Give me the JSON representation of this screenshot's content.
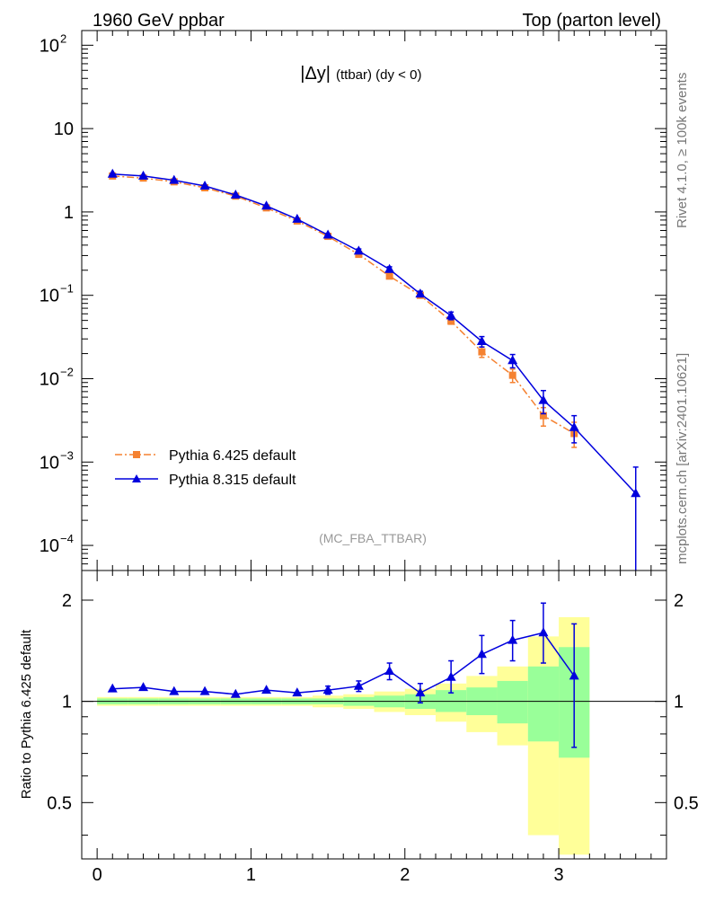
{
  "header": {
    "left_title": "1960 GeV ppbar",
    "right_title": "Top (parton level)"
  },
  "side": {
    "rivet": "Rivet 4.1.0, ≥ 100k events",
    "mcplots": "mcplots.cern.ch [arXiv:2401.10621]"
  },
  "chart_data": [
    {
      "type": "line",
      "title": "|Δy| (ttbar) (dy < 0)",
      "title_main": "|Δy|",
      "title_sub": "(ttbar) (dy < 0)",
      "watermark": "(MC_FBA_TTBAR)",
      "xlabel": "",
      "ylabel": "",
      "yscale": "log",
      "xlim": [
        -0.1,
        3.7
      ],
      "ylim": [
        5e-05,
        150
      ],
      "yticks": [
        {
          "value": 100,
          "base": "10",
          "exp": "2"
        },
        {
          "value": 10,
          "base": "10",
          "exp": ""
        },
        {
          "value": 1,
          "base": "1",
          "exp": ""
        },
        {
          "value": 0.1,
          "base": "10",
          "exp": "−1"
        },
        {
          "value": 0.01,
          "base": "10",
          "exp": "−2"
        },
        {
          "value": 0.001,
          "base": "10",
          "exp": "−3"
        },
        {
          "value": 0.0001,
          "base": "10",
          "exp": "−4"
        }
      ],
      "legend": [
        "Pythia 6.425 default",
        "Pythia 8.315 default"
      ],
      "legend_position": "bottom-left",
      "series": [
        {
          "name": "Pythia 6.425 default",
          "color": "#f58231",
          "marker": "square",
          "line": "dashdot",
          "x": [
            0.1,
            0.3,
            0.5,
            0.7,
            0.9,
            1.1,
            1.3,
            1.5,
            1.7,
            1.9,
            2.1,
            2.3,
            2.5,
            2.7,
            2.9,
            3.1
          ],
          "y": [
            2.7,
            2.55,
            2.3,
            1.95,
            1.55,
            1.12,
            0.78,
            0.51,
            0.31,
            0.17,
            0.1,
            0.049,
            0.021,
            0.011,
            0.0036,
            0.0022
          ],
          "err_up": [
            0,
            0,
            0,
            0,
            0,
            0,
            0,
            0,
            0,
            0.01,
            0.005,
            0.004,
            0.003,
            0.002,
            0.0009,
            0.0008
          ],
          "err_down": [
            0,
            0,
            0,
            0,
            0,
            0,
            0,
            0,
            0,
            0.01,
            0.005,
            0.004,
            0.003,
            0.002,
            0.0009,
            0.0007
          ]
        },
        {
          "name": "Pythia 8.315 default",
          "color": "#0000dd",
          "marker": "triangle",
          "line": "solid",
          "x": [
            0.1,
            0.3,
            0.5,
            0.7,
            0.9,
            1.1,
            1.3,
            1.5,
            1.7,
            1.9,
            2.1,
            2.3,
            2.5,
            2.7,
            2.9,
            3.1,
            3.5
          ],
          "y": [
            2.85,
            2.7,
            2.4,
            2.05,
            1.6,
            1.18,
            0.82,
            0.53,
            0.34,
            0.205,
            0.104,
            0.057,
            0.028,
            0.0165,
            0.0055,
            0.0026,
            0.00042
          ],
          "err_up": [
            0,
            0,
            0,
            0,
            0,
            0,
            0,
            0,
            0.02,
            0.015,
            0.008,
            0.006,
            0.004,
            0.003,
            0.0017,
            0.001,
            0.00045
          ],
          "err_down": [
            0,
            0,
            0,
            0,
            0,
            0,
            0,
            0,
            0.02,
            0.015,
            0.008,
            0.006,
            0.004,
            0.003,
            0.0017,
            0.0009,
            0.00038
          ]
        }
      ]
    },
    {
      "type": "line",
      "xlabel": "",
      "ylabel": "Ratio to Pythia 6.425 default",
      "yscale": "log",
      "xlim": [
        -0.1,
        3.7
      ],
      "ylim": [
        0.34,
        2.45
      ],
      "yticks": [
        2,
        1,
        0.5
      ],
      "xticks": [
        0,
        1,
        2,
        3
      ],
      "reference_line": 1,
      "bands": [
        {
          "x0": 0.0,
          "x1": 0.2,
          "g_lo": 0.98,
          "g_hi": 1.02,
          "y_lo": 0.97,
          "y_hi": 1.03
        },
        {
          "x0": 0.2,
          "x1": 0.4,
          "g_lo": 0.98,
          "g_hi": 1.02,
          "y_lo": 0.97,
          "y_hi": 1.03
        },
        {
          "x0": 0.4,
          "x1": 0.6,
          "g_lo": 0.98,
          "g_hi": 1.02,
          "y_lo": 0.97,
          "y_hi": 1.03
        },
        {
          "x0": 0.6,
          "x1": 0.8,
          "g_lo": 0.98,
          "g_hi": 1.02,
          "y_lo": 0.97,
          "y_hi": 1.03
        },
        {
          "x0": 0.8,
          "x1": 1.0,
          "g_lo": 0.98,
          "g_hi": 1.02,
          "y_lo": 0.97,
          "y_hi": 1.03
        },
        {
          "x0": 1.0,
          "x1": 1.2,
          "g_lo": 0.98,
          "g_hi": 1.02,
          "y_lo": 0.97,
          "y_hi": 1.03
        },
        {
          "x0": 1.2,
          "x1": 1.4,
          "g_lo": 0.98,
          "g_hi": 1.02,
          "y_lo": 0.97,
          "y_hi": 1.03
        },
        {
          "x0": 1.4,
          "x1": 1.6,
          "g_lo": 0.98,
          "g_hi": 1.02,
          "y_lo": 0.96,
          "y_hi": 1.04
        },
        {
          "x0": 1.6,
          "x1": 1.8,
          "g_lo": 0.97,
          "g_hi": 1.03,
          "y_lo": 0.95,
          "y_hi": 1.05
        },
        {
          "x0": 1.8,
          "x1": 2.0,
          "g_lo": 0.96,
          "g_hi": 1.04,
          "y_lo": 0.93,
          "y_hi": 1.07
        },
        {
          "x0": 2.0,
          "x1": 2.2,
          "g_lo": 0.95,
          "g_hi": 1.05,
          "y_lo": 0.91,
          "y_hi": 1.09
        },
        {
          "x0": 2.2,
          "x1": 2.4,
          "g_lo": 0.93,
          "g_hi": 1.08,
          "y_lo": 0.87,
          "y_hi": 1.13
        },
        {
          "x0": 2.4,
          "x1": 2.6,
          "g_lo": 0.91,
          "g_hi": 1.1,
          "y_lo": 0.81,
          "y_hi": 1.19
        },
        {
          "x0": 2.6,
          "x1": 2.8,
          "g_lo": 0.86,
          "g_hi": 1.15,
          "y_lo": 0.74,
          "y_hi": 1.27
        },
        {
          "x0": 2.8,
          "x1": 3.0,
          "g_lo": 0.76,
          "g_hi": 1.27,
          "y_lo": 0.4,
          "y_hi": 1.56
        },
        {
          "x0": 3.0,
          "x1": 3.2,
          "g_lo": 0.68,
          "g_hi": 1.45,
          "y_lo": 0.35,
          "y_hi": 1.78
        }
      ],
      "series": [
        {
          "name": "Pythia 8.315 default / Pythia 6.425 default",
          "color": "#0000dd",
          "marker": "triangle",
          "x": [
            0.1,
            0.3,
            0.5,
            0.7,
            0.9,
            1.1,
            1.3,
            1.5,
            1.7,
            1.9,
            2.1,
            2.3,
            2.5,
            2.7,
            2.9,
            3.1
          ],
          "y": [
            1.09,
            1.1,
            1.07,
            1.07,
            1.05,
            1.08,
            1.06,
            1.08,
            1.11,
            1.23,
            1.06,
            1.18,
            1.38,
            1.52,
            1.6,
            1.19
          ],
          "err_up": [
            0,
            0,
            0,
            0,
            0,
            0,
            0,
            0.03,
            0.04,
            0.07,
            0.07,
            0.14,
            0.19,
            0.22,
            0.36,
            0.51
          ],
          "err_down": [
            0,
            0,
            0,
            0,
            0,
            0,
            0,
            0.03,
            0.04,
            0.07,
            0.07,
            0.12,
            0.17,
            0.2,
            0.3,
            0.46
          ]
        }
      ]
    }
  ]
}
